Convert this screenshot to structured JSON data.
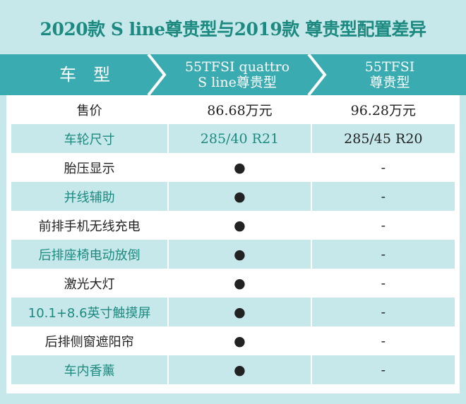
{
  "title": "2020款 S line尊贵型与2019款 尊贵型配置差异",
  "header": {
    "col1": "车　型",
    "col2_line1": "55TFSI quattro",
    "col2_line2": "S line尊贵型",
    "col3_line1": "55TFSI",
    "col3_line2": "尊贵型"
  },
  "rows": [
    {
      "feature": "售价",
      "a": "86.68万元",
      "b": "96.28万元"
    },
    {
      "feature": "车轮尺寸",
      "a": "285/40 R21",
      "b": "285/45 R20"
    },
    {
      "feature": "胎压显示",
      "a": "●",
      "b": "-"
    },
    {
      "feature": "并线辅助",
      "a": "●",
      "b": "-"
    },
    {
      "feature": "前排手机无线充电",
      "a": "●",
      "b": "-"
    },
    {
      "feature": "后排座椅电动放倒",
      "a": "●",
      "b": "-"
    },
    {
      "feature": "激光大灯",
      "a": "●",
      "b": "-"
    },
    {
      "feature": "10.1+8.6英寸触摸屏",
      "a": "●",
      "b": "-"
    },
    {
      "feature": "后排侧窗遮阳帘",
      "a": "●",
      "b": "-"
    },
    {
      "feature": "车内香薰",
      "a": "●",
      "b": "-"
    }
  ],
  "colors": {
    "background": "#c6e8ea",
    "header": "#3aabb0",
    "accent_text": "#1c8a80"
  }
}
